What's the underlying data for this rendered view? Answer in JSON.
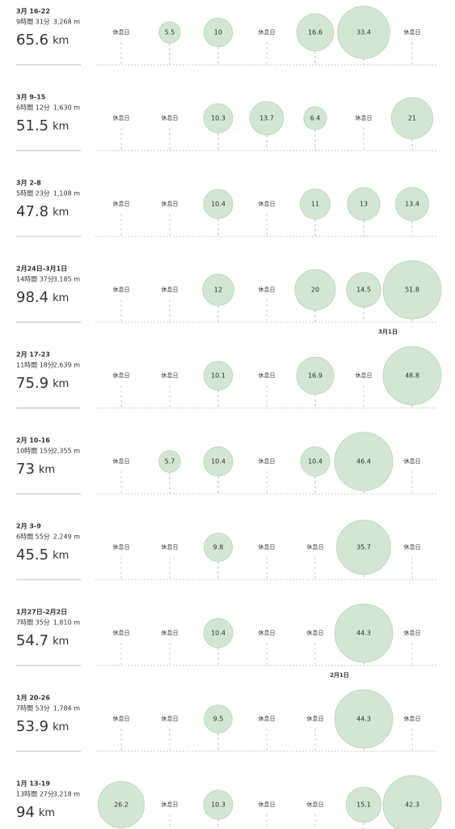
{
  "unit": "km",
  "weeks": [
    {
      "dates": "3月 16-22",
      "time": "9時間 31分",
      "elevation": "3,268 m",
      "distance": 65.6,
      "days": [
        "休息日",
        5.5,
        10,
        "休息日",
        16.6,
        33.4,
        "休息日"
      ]
    },
    {
      "dates": "3月 9-15",
      "time": "6時間 12分",
      "elevation": "1,630 m",
      "distance": 51.5,
      "days": [
        "休息日",
        "休息日",
        10.3,
        13.7,
        6.4,
        "休息日",
        21
      ]
    },
    {
      "dates": "3月 2-8",
      "time": "5時間 23分",
      "elevation": "1,108 m",
      "distance": 47.8,
      "days": [
        "休息日",
        "休息日",
        10.4,
        "休息日",
        11,
        13,
        13.4
      ]
    },
    {
      "dates": "2月24日-3月1日",
      "time": "14時間 37分",
      "elevation": "3,185 m",
      "distance": 98.4,
      "days": [
        "休息日",
        "休息日",
        12,
        "休息日",
        20,
        14.5,
        51.8
      ],
      "marker": {
        "day": 6,
        "label": "3月1日"
      }
    },
    {
      "dates": "2月 17-23",
      "time": "11時間 18分",
      "elevation": "2,639 m",
      "distance": 75.9,
      "days": [
        "休息日",
        "休息日",
        10.1,
        "休息日",
        16.9,
        "休息日",
        48.8
      ]
    },
    {
      "dates": "2月 10-16",
      "time": "10時間 15分",
      "elevation": "2,355 m",
      "distance": 73,
      "days": [
        "休息日",
        5.7,
        10.4,
        "休息日",
        10.4,
        46.4,
        "休息日"
      ]
    },
    {
      "dates": "2月 3-9",
      "time": "6時間 55分",
      "elevation": "2,249 m",
      "distance": 45.5,
      "days": [
        "休息日",
        "休息日",
        9.8,
        "休息日",
        "休息日",
        35.7,
        "休息日"
      ]
    },
    {
      "dates": "1月27日-2月2日",
      "time": "7時間 35分",
      "elevation": "1,810 m",
      "distance": 54.7,
      "days": [
        "休息日",
        "休息日",
        10.4,
        "休息日",
        "休息日",
        44.3,
        "休息日"
      ],
      "marker": {
        "day": 5,
        "label": "2月1日"
      }
    },
    {
      "dates": "1月 20-26",
      "time": "7時間 53分",
      "elevation": "1,784 m",
      "distance": 53.9,
      "days": [
        "休息日",
        "休息日",
        9.5,
        "休息日",
        "休息日",
        44.3,
        "休息日"
      ]
    },
    {
      "dates": "1月 13-19",
      "time": "13時間 27分",
      "elevation": "3,218 m",
      "distance": 94,
      "days": [
        26.2,
        "休息日",
        10.3,
        "休息日",
        "休息日",
        15.1,
        42.3
      ]
    }
  ]
}
